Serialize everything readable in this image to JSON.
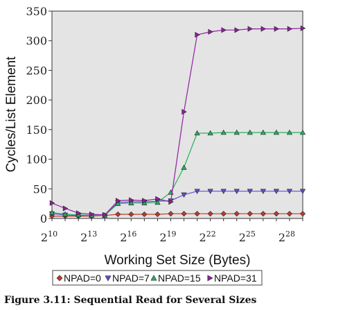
{
  "caption": "Figure 3.11: Sequential Read for Several Sizes",
  "chart_data": {
    "type": "line",
    "xlabel": "Working Set Size (Bytes)",
    "ylabel": "Cycles/List Element",
    "x_scale": "log2",
    "x": [
      10,
      11,
      12,
      13,
      14,
      15,
      16,
      17,
      18,
      19,
      20,
      21,
      22,
      23,
      24,
      25,
      26,
      27,
      28,
      29
    ],
    "x_ticks": [
      {
        "base": "2",
        "exp": "10"
      },
      {
        "base": "2",
        "exp": "13"
      },
      {
        "base": "2",
        "exp": "16"
      },
      {
        "base": "2",
        "exp": "19"
      },
      {
        "base": "2",
        "exp": "22"
      },
      {
        "base": "2",
        "exp": "25"
      },
      {
        "base": "2",
        "exp": "28"
      }
    ],
    "xlim": [
      10,
      29
    ],
    "ylim": [
      0,
      350
    ],
    "y_ticks": [
      "0",
      "50",
      "100",
      "150",
      "200",
      "250",
      "300",
      "350"
    ],
    "grid": false,
    "legend_position": "bottom",
    "series": [
      {
        "name": "NPAD=0",
        "color": "#c0392b",
        "marker": "diamond",
        "values": [
          4,
          4,
          4,
          4,
          5,
          7,
          7,
          7,
          7,
          8,
          8,
          8,
          8,
          8,
          8,
          8,
          8,
          8,
          8,
          8
        ]
      },
      {
        "name": "NPAD=7",
        "color": "#5b4fcf",
        "marker": "triangle-down",
        "values": [
          8,
          6,
          5,
          5,
          5,
          27,
          28,
          28,
          29,
          30,
          40,
          46,
          46,
          46,
          46,
          46,
          46,
          46,
          46,
          46
        ]
      },
      {
        "name": "NPAD=15",
        "color": "#27ae60",
        "marker": "triangle-up",
        "values": [
          10,
          7,
          6,
          5,
          5,
          25,
          26,
          26,
          27,
          44,
          86,
          144,
          144,
          145,
          145,
          145,
          145,
          145,
          145,
          145
        ]
      },
      {
        "name": "NPAD=31",
        "color": "#8e1f9e",
        "marker": "triangle-right",
        "values": [
          26,
          17,
          9,
          7,
          6,
          30,
          31,
          30,
          33,
          28,
          180,
          310,
          315,
          318,
          318,
          320,
          320,
          320,
          320,
          321
        ]
      }
    ]
  }
}
